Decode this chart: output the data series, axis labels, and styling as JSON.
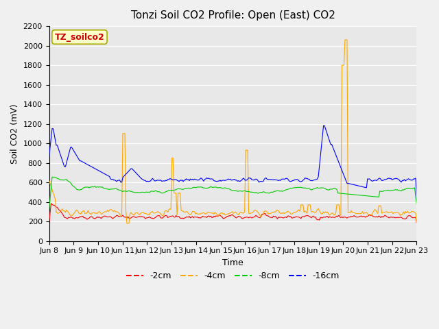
{
  "title": "Tonzi Soil CO2 Profile: Open (East) CO2",
  "xlabel": "Time",
  "ylabel": "Soil CO2 (mV)",
  "ylim": [
    0,
    2200
  ],
  "yticks": [
    0,
    200,
    400,
    600,
    800,
    1000,
    1200,
    1400,
    1600,
    1800,
    2000,
    2200
  ],
  "label_box": "TZ_soilco2",
  "colors": {
    "-2cm": "#ff0000",
    "-4cm": "#ffa500",
    "-8cm": "#00cc00",
    "-16cm": "#0000ff"
  },
  "legend_labels": [
    "-2cm",
    "-4cm",
    "-8cm",
    "-16cm"
  ],
  "n_points": 360,
  "x_start": 8.0,
  "x_end": 23.0,
  "xtick_positions": [
    8,
    9,
    10,
    11,
    12,
    13,
    14,
    15,
    16,
    17,
    18,
    19,
    20,
    21,
    22,
    23
  ],
  "xtick_labels": [
    "Jun 8",
    "Jun 9",
    "Jun 10",
    "Jun 11",
    "Jun 12",
    "Jun 13",
    "Jun 14",
    "Jun 15",
    "Jun 16",
    "Jun 17",
    "Jun 18",
    "Jun 19",
    "Jun 20",
    "Jun 21",
    "Jun 22",
    "Jun 23"
  ]
}
